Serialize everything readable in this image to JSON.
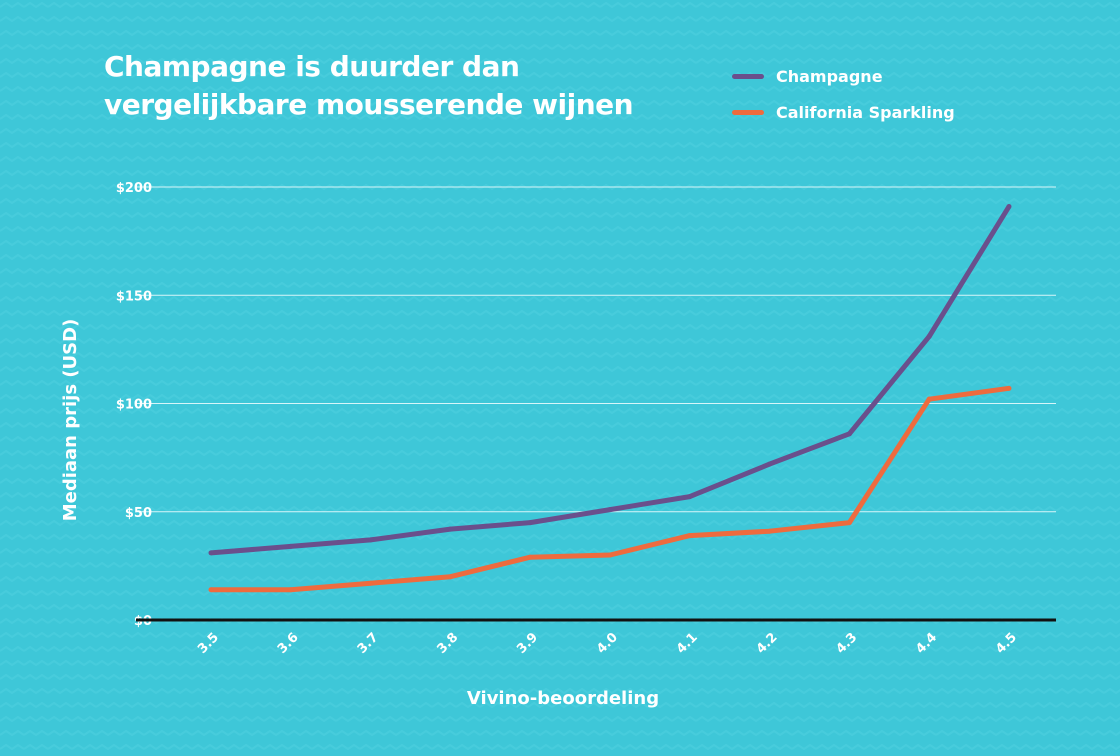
{
  "chart_data": {
    "type": "line",
    "title": "Champagne is duurder dan vergelijkbare mousserende wijnen",
    "xlabel": "Vivino-beoordeling",
    "ylabel": "Mediaan prijs (USD)",
    "categories": [
      "3.5",
      "3.6",
      "3.7",
      "3.8",
      "3.9",
      "4.0",
      "4.1",
      "4.2",
      "4.3",
      "4.4",
      "4.5"
    ],
    "y_ticks": [
      "$0",
      "$50",
      "$100",
      "$150",
      "$200"
    ],
    "y_tick_values": [
      0,
      50,
      100,
      150,
      200
    ],
    "ylim": [
      0,
      200
    ],
    "grid": true,
    "legend_position": "top-right",
    "series": [
      {
        "name": "Champagne",
        "color": "#6a4f8c",
        "values": [
          31,
          34,
          37,
          42,
          45,
          51,
          57,
          72,
          86,
          131,
          191
        ]
      },
      {
        "name": "California Sparkling",
        "color": "#ee6b3e",
        "values": [
          14,
          14,
          17,
          20,
          29,
          30,
          39,
          41,
          45,
          102,
          107
        ]
      }
    ]
  },
  "colors": {
    "background": "#3ec7d8",
    "gridline": "#d7f5f9",
    "baseline": "#111111",
    "text": "#ffffff"
  }
}
